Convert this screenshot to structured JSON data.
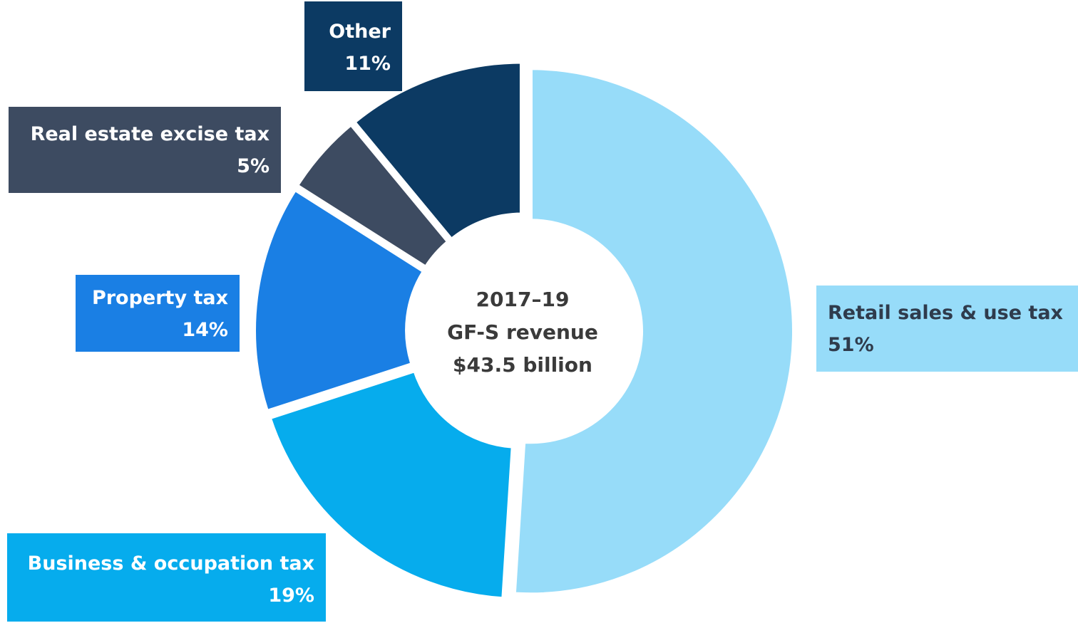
{
  "chart_data": {
    "type": "pie",
    "donut": true,
    "center_label": [
      "2017–19",
      "GF-S revenue",
      "$43.5 billion"
    ],
    "slices": [
      {
        "name": "Retail sales & use tax",
        "pct_label": "51%",
        "value": 51,
        "color": "#97dcf9",
        "label_color": "#2f3b4c"
      },
      {
        "name": "Business & occupation tax",
        "pct_label": "19%",
        "value": 19,
        "color": "#06aced",
        "label_color": "#ffffff"
      },
      {
        "name": "Property tax",
        "pct_label": "14%",
        "value": 14,
        "color": "#1a7fe4",
        "label_color": "#ffffff"
      },
      {
        "name": "Real estate excise tax",
        "pct_label": "5%",
        "value": 5,
        "color": "#3d4b61",
        "label_color": "#ffffff"
      },
      {
        "name": "Other",
        "pct_label": "11%",
        "value": 11,
        "color": "#0c3a63",
        "label_color": "#ffffff"
      }
    ]
  }
}
